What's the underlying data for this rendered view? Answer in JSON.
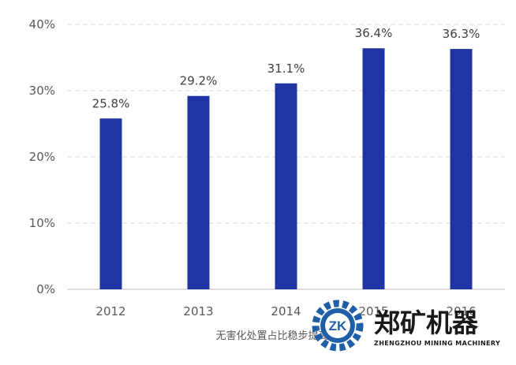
{
  "chart_data": {
    "type": "bar",
    "categories": [
      "2012",
      "2013",
      "2014",
      "2015",
      "2016"
    ],
    "values": [
      25.8,
      29.2,
      31.1,
      36.4,
      36.3
    ],
    "value_labels": [
      "25.8%",
      "29.2%",
      "31.1%",
      "36.4%",
      "36.3%"
    ],
    "yticks": [
      "0%",
      "10%",
      "20%",
      "30%",
      "40%"
    ],
    "ylim": [
      0,
      40
    ],
    "grid": true,
    "bar_color": "#1f35a3",
    "title": "",
    "xlabel": "",
    "ylabel": ""
  },
  "caption": "无害化处置占比稳步提高",
  "watermark": {
    "logo_letters": "ZK",
    "brand_name": "郑矿机器",
    "brand_sub": "ZHENGZHOU MINING MACHINERY",
    "logo_color": "#1e5fa8"
  }
}
